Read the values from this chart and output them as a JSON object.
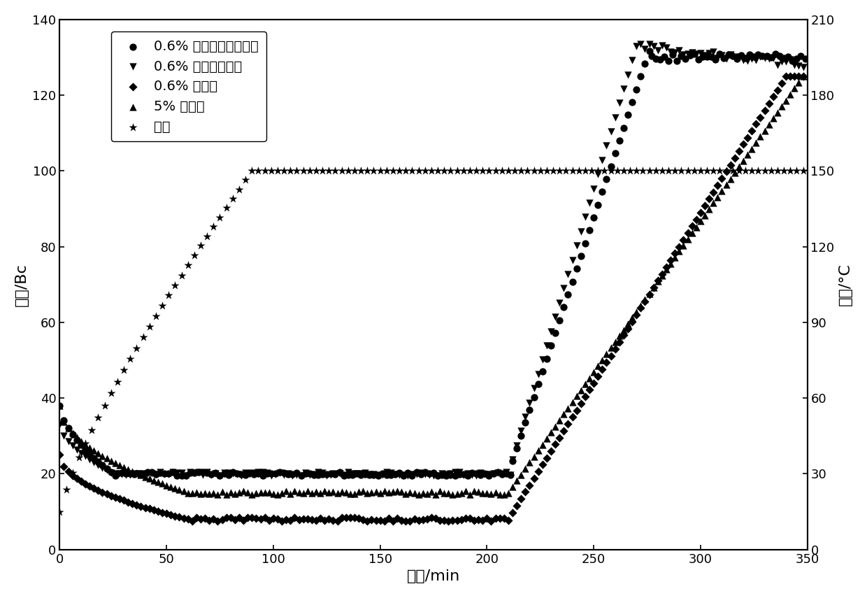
{
  "xlabel": "时间/min",
  "ylabel_left": "稠度/Bc",
  "ylabel_right": "温度/°C",
  "xlim": [
    0,
    350
  ],
  "ylim_left": [
    0,
    140
  ],
  "ylim_right": [
    0,
    210
  ],
  "xticks": [
    0,
    50,
    100,
    150,
    200,
    250,
    300,
    350
  ],
  "yticks_left": [
    0,
    20,
    40,
    60,
    80,
    100,
    120,
    140
  ],
  "yticks_right": [
    0,
    30,
    60,
    90,
    120,
    150,
    180,
    210
  ],
  "series1_label": "0.6% 热增黏沉降稳定剂",
  "series2_label": "0.6% 羟乙基纤维素",
  "series3_label": "0.6% 黄原胶",
  "series4_label": "5% 膨润土",
  "series5_label": "温度"
}
